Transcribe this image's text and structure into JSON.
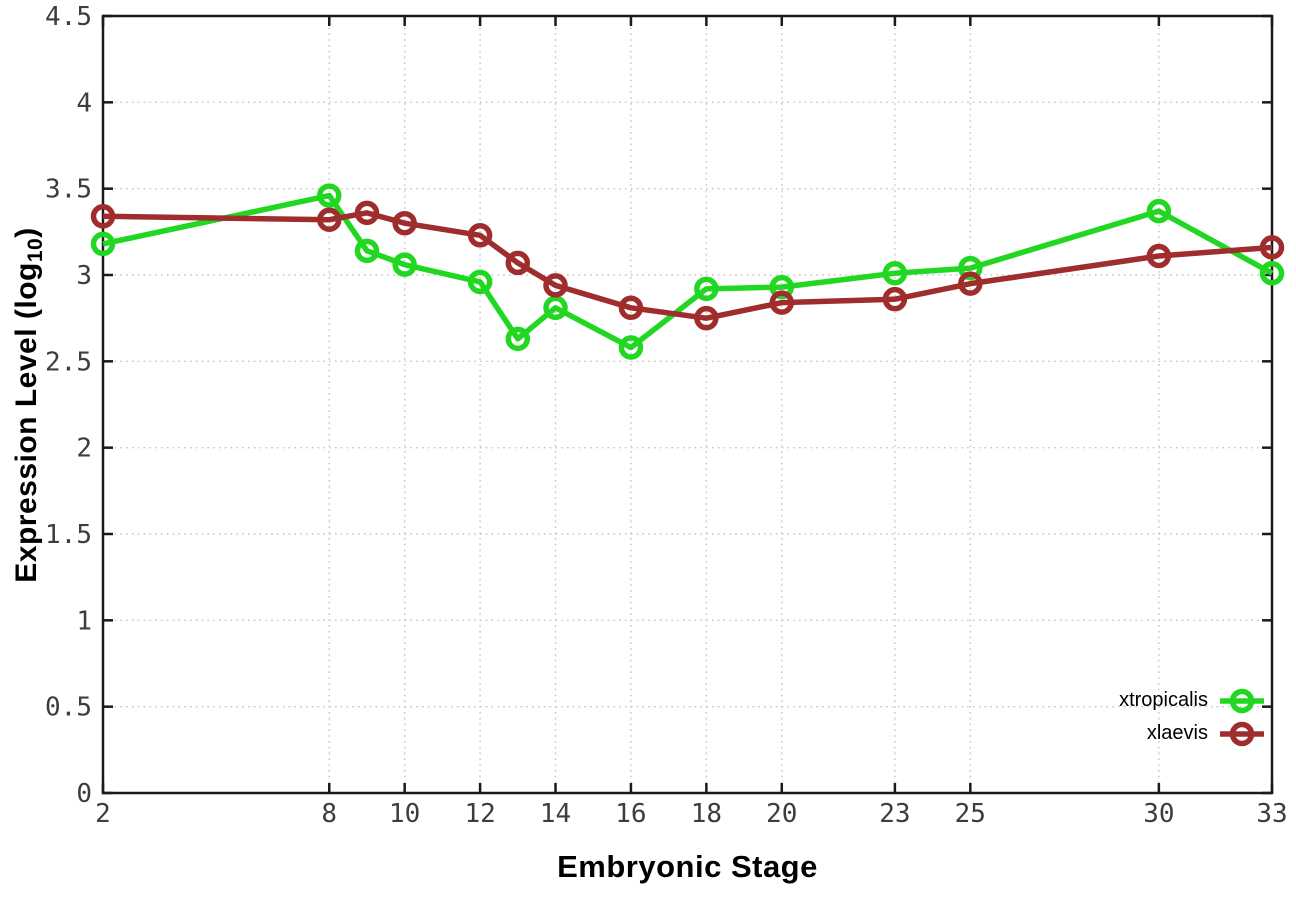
{
  "chart_data": {
    "type": "line",
    "title": "",
    "xlabel": "Embryonic Stage",
    "ylabel": "Expression Level (log10)",
    "ylabel_prefix": "Expression Level (log",
    "ylabel_subscript": "10",
    "ylabel_suffix": ")",
    "xlim": [
      2,
      33
    ],
    "ylim": [
      0,
      4.5
    ],
    "x_ticks": [
      2,
      8,
      10,
      12,
      14,
      16,
      18,
      20,
      23,
      25,
      30,
      33
    ],
    "y_ticks": [
      0,
      0.5,
      1,
      1.5,
      2,
      2.5,
      3,
      3.5,
      4,
      4.5
    ],
    "grid": true,
    "legend_position": "bottom-right",
    "x": [
      2,
      8,
      9,
      10,
      12,
      13,
      14,
      16,
      18,
      20,
      23,
      25,
      30,
      33
    ],
    "series": [
      {
        "name": "xtropicalis",
        "color": "#22d722",
        "values": [
          3.18,
          3.46,
          3.14,
          3.06,
          2.96,
          2.63,
          2.81,
          2.58,
          2.92,
          2.93,
          3.01,
          3.04,
          3.37,
          3.01
        ]
      },
      {
        "name": "xlaevis",
        "color": "#a02d2d",
        "values": [
          3.34,
          3.32,
          3.36,
          3.3,
          3.23,
          3.07,
          2.94,
          2.81,
          2.75,
          2.84,
          2.86,
          2.95,
          3.11,
          3.16
        ]
      }
    ]
  },
  "styles": {
    "background": "#ffffff",
    "axis_color": "#1a1a1a",
    "grid_color": "#c4c4c4",
    "tick_label_color": "#3d3d3d"
  }
}
